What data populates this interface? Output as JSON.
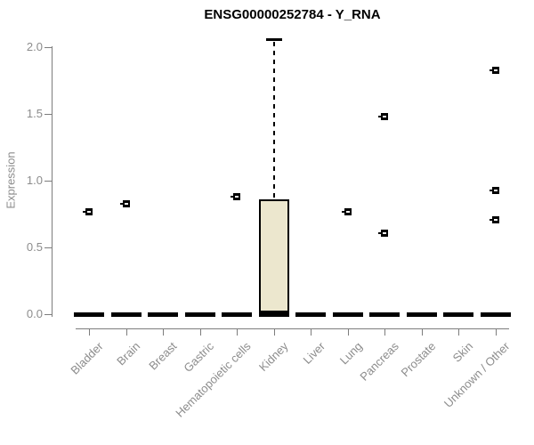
{
  "chart_data": {
    "type": "boxplot",
    "title": "ENSG00000252784 - Y_RNA",
    "ylabel": "Expression",
    "xlabel": "",
    "ylim": [
      0.0,
      2.0
    ],
    "yticks": [
      "0.0",
      "0.5",
      "1.0",
      "1.5",
      "2.0"
    ],
    "grid": false,
    "legend": false,
    "colors": {
      "box_fill": "#ece7ce",
      "box_border": "#000000",
      "median": "#000000",
      "axis": "#7d7d7d",
      "tick_text": "#8c8c8c",
      "title_text": "#000000"
    },
    "categories": [
      "Bladder",
      "Brain",
      "Breast",
      "Gastric",
      "Hematopoietic cells",
      "Kidney",
      "Liver",
      "Lung",
      "Pancreas",
      "Prostate",
      "Skin",
      "Unknown / Other"
    ],
    "groups": [
      {
        "label": "Bladder",
        "median": 0.0,
        "box": null,
        "points": [
          0.77
        ]
      },
      {
        "label": "Brain",
        "median": 0.0,
        "box": null,
        "points": [
          0.83
        ]
      },
      {
        "label": "Breast",
        "median": 0.0,
        "box": null,
        "points": []
      },
      {
        "label": "Gastric",
        "median": 0.0,
        "box": null,
        "points": []
      },
      {
        "label": "Hematopoietic cells",
        "median": 0.0,
        "box": null,
        "points": [
          0.88
        ]
      },
      {
        "label": "Kidney",
        "median": 0.01,
        "box": {
          "q1": 0.0,
          "q3": 0.86,
          "whisker_high": 2.06
        },
        "points": []
      },
      {
        "label": "Liver",
        "median": 0.0,
        "box": null,
        "points": []
      },
      {
        "label": "Lung",
        "median": 0.0,
        "box": null,
        "points": [
          0.77
        ]
      },
      {
        "label": "Pancreas",
        "median": 0.0,
        "box": null,
        "points": [
          1.48,
          0.61
        ]
      },
      {
        "label": "Prostate",
        "median": 0.0,
        "box": null,
        "points": []
      },
      {
        "label": "Skin",
        "median": 0.0,
        "box": null,
        "points": []
      },
      {
        "label": "Unknown / Other",
        "median": 0.0,
        "box": null,
        "points": [
          1.83,
          0.93,
          0.71
        ]
      }
    ]
  }
}
